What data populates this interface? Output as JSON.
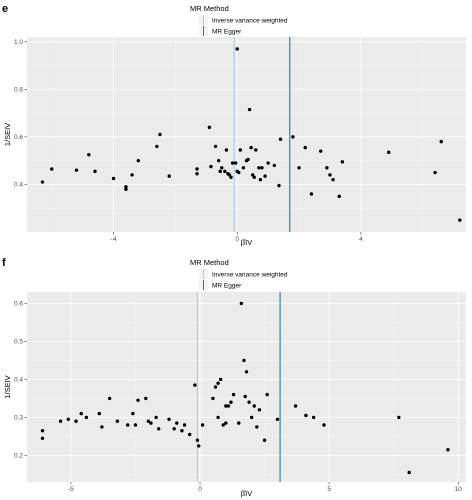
{
  "colors": {
    "ivw": "#a6cee3",
    "egger": "#1f78b4",
    "panel": "#ebebeb",
    "points": "#000000"
  },
  "chart_data": [
    {
      "panel_label": "e",
      "type": "scatter",
      "xlabel": "β̂IV",
      "ylabel": "1/SEIV",
      "xlim": [
        -6.8,
        7.4
      ],
      "ylim": [
        0.2,
        1.02
      ],
      "xticks": [
        -4,
        0,
        4
      ],
      "xtick_labels": [
        "-4",
        "0",
        "4"
      ],
      "yticks": [
        0.4,
        0.6,
        0.8,
        1.0
      ],
      "ytick_labels": [
        "0.4",
        "0.6",
        "0.8",
        "1.0"
      ],
      "grid": true,
      "legend": {
        "title": "MR Method",
        "placement": "top",
        "entries": [
          {
            "label": "Inverse variance weighted",
            "color": "#a6cee3"
          },
          {
            "label": "MR Egger",
            "color": "#1f78b4"
          }
        ]
      },
      "vlines": [
        {
          "method": "Inverse variance weighted",
          "x": -0.1
        },
        {
          "method": "MR Egger",
          "x": 1.7
        }
      ],
      "points": [
        [
          -6.3,
          0.41
        ],
        [
          -6.0,
          0.465
        ],
        [
          -5.2,
          0.46
        ],
        [
          -4.8,
          0.525
        ],
        [
          -4.6,
          0.455
        ],
        [
          -4.0,
          0.425
        ],
        [
          -3.6,
          0.39
        ],
        [
          -3.6,
          0.38
        ],
        [
          -3.4,
          0.44
        ],
        [
          -3.2,
          0.5
        ],
        [
          -2.6,
          0.56
        ],
        [
          -2.5,
          0.61
        ],
        [
          -2.2,
          0.435
        ],
        [
          -1.3,
          0.465
        ],
        [
          -1.3,
          0.445
        ],
        [
          -0.9,
          0.64
        ],
        [
          -0.85,
          0.475
        ],
        [
          -0.7,
          0.56
        ],
        [
          -0.6,
          0.5
        ],
        [
          -0.55,
          0.455
        ],
        [
          -0.5,
          0.47
        ],
        [
          -0.4,
          0.455
        ],
        [
          -0.35,
          0.545
        ],
        [
          -0.3,
          0.445
        ],
        [
          -0.25,
          0.44
        ],
        [
          -0.2,
          0.43
        ],
        [
          -0.15,
          0.49
        ],
        [
          -0.05,
          0.49
        ],
        [
          0.0,
          0.455
        ],
        [
          0.05,
          0.45
        ],
        [
          0.0,
          0.97
        ],
        [
          0.1,
          0.545
        ],
        [
          0.2,
          0.47
        ],
        [
          0.3,
          0.5
        ],
        [
          0.35,
          0.505
        ],
        [
          0.4,
          0.715
        ],
        [
          0.45,
          0.555
        ],
        [
          0.5,
          0.44
        ],
        [
          0.55,
          0.43
        ],
        [
          0.6,
          0.545
        ],
        [
          0.7,
          0.47
        ],
        [
          0.75,
          0.42
        ],
        [
          0.8,
          0.47
        ],
        [
          0.9,
          0.435
        ],
        [
          1.0,
          0.49
        ],
        [
          1.2,
          0.48
        ],
        [
          1.35,
          0.395
        ],
        [
          1.4,
          0.59
        ],
        [
          1.8,
          0.6
        ],
        [
          2.0,
          0.47
        ],
        [
          2.2,
          0.555
        ],
        [
          2.4,
          0.36
        ],
        [
          2.7,
          0.54
        ],
        [
          2.9,
          0.47
        ],
        [
          3.0,
          0.44
        ],
        [
          3.1,
          0.42
        ],
        [
          3.3,
          0.35
        ],
        [
          3.4,
          0.495
        ],
        [
          4.9,
          0.535
        ],
        [
          6.4,
          0.45
        ],
        [
          6.6,
          0.58
        ],
        [
          7.2,
          0.25
        ]
      ]
    },
    {
      "panel_label": "f",
      "type": "scatter",
      "xlabel": "β̂IV",
      "ylabel": "1/SEIV",
      "xlim": [
        -6.7,
        10.3
      ],
      "ylim": [
        0.13,
        0.63
      ],
      "xticks": [
        -5,
        0,
        5,
        10
      ],
      "xtick_labels": [
        "-5",
        "0",
        "5",
        "10"
      ],
      "yticks": [
        0.2,
        0.3,
        0.4,
        0.5,
        0.6
      ],
      "ytick_labels": [
        "0.2",
        "0.3",
        "0.4",
        "0.5",
        "0.6"
      ],
      "grid": true,
      "legend": {
        "title": "MR Method",
        "placement": "top",
        "entries": [
          {
            "label": "Inverse variance weighted",
            "color": "#a6cee3"
          },
          {
            "label": "MR Egger",
            "color": "#1f78b4"
          }
        ]
      },
      "vlines": [
        {
          "method": "Inverse variance weighted",
          "x": -0.1
        },
        {
          "method": "MR Egger",
          "x": 3.1
        }
      ],
      "points": [
        [
          -6.1,
          0.265
        ],
        [
          -6.1,
          0.245
        ],
        [
          -5.4,
          0.29
        ],
        [
          -5.1,
          0.295
        ],
        [
          -4.8,
          0.29
        ],
        [
          -4.6,
          0.31
        ],
        [
          -4.4,
          0.3
        ],
        [
          -3.9,
          0.31
        ],
        [
          -3.8,
          0.275
        ],
        [
          -3.5,
          0.35
        ],
        [
          -3.2,
          0.29
        ],
        [
          -2.8,
          0.28
        ],
        [
          -2.6,
          0.31
        ],
        [
          -2.5,
          0.28
        ],
        [
          -2.4,
          0.345
        ],
        [
          -2.1,
          0.35
        ],
        [
          -2.0,
          0.29
        ],
        [
          -1.9,
          0.285
        ],
        [
          -1.7,
          0.3
        ],
        [
          -1.6,
          0.27
        ],
        [
          -1.2,
          0.295
        ],
        [
          -1.0,
          0.27
        ],
        [
          -0.9,
          0.285
        ],
        [
          -0.7,
          0.265
        ],
        [
          -0.6,
          0.28
        ],
        [
          -0.4,
          0.255
        ],
        [
          -0.2,
          0.385
        ],
        [
          -0.1,
          0.24
        ],
        [
          -0.05,
          0.225
        ],
        [
          0.1,
          0.28
        ],
        [
          0.5,
          0.35
        ],
        [
          0.6,
          0.38
        ],
        [
          0.7,
          0.39
        ],
        [
          0.8,
          0.4
        ],
        [
          0.9,
          0.28
        ],
        [
          1.0,
          0.285
        ],
        [
          1.1,
          0.33
        ],
        [
          1.2,
          0.34
        ],
        [
          1.3,
          0.36
        ],
        [
          1.5,
          0.285
        ],
        [
          1.6,
          0.6
        ],
        [
          1.7,
          0.45
        ],
        [
          1.75,
          0.355
        ],
        [
          1.8,
          0.42
        ],
        [
          1.9,
          0.34
        ],
        [
          2.0,
          0.3
        ],
        [
          2.1,
          0.33
        ],
        [
          2.2,
          0.275
        ],
        [
          2.3,
          0.32
        ],
        [
          2.5,
          0.24
        ],
        [
          2.6,
          0.36
        ],
        [
          1.0,
          0.33
        ],
        [
          0.7,
          0.3
        ],
        [
          3.0,
          0.295
        ],
        [
          3.7,
          0.33
        ],
        [
          4.1,
          0.305
        ],
        [
          4.4,
          0.3
        ],
        [
          4.8,
          0.28
        ],
        [
          7.7,
          0.3
        ],
        [
          8.1,
          0.155
        ],
        [
          9.6,
          0.215
        ]
      ]
    }
  ]
}
